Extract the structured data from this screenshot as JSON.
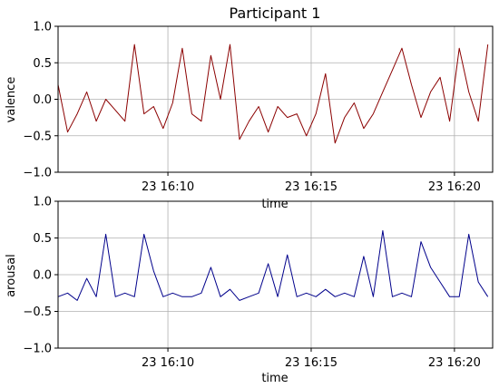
{
  "chart_data": [
    {
      "type": "line",
      "title": "Participant 1",
      "xlabel": "time",
      "ylabel": "valence",
      "ylim": [
        -1.0,
        1.0
      ],
      "xlim": [
        "23 16:06:10",
        "23 16:21:20"
      ],
      "grid": true,
      "y_ticks": [
        "−1.0",
        "−0.5",
        "0.0",
        "0.5",
        "1.0"
      ],
      "x_ticks": [
        "23 16:10",
        "23 16:15",
        "23 16:20"
      ],
      "colors": {
        "series": "#8b0000"
      },
      "series": [
        {
          "x": [
            "23 16:06:10",
            "23 16:06:30",
            "23 16:06:50",
            "23 16:07:10",
            "23 16:07:30",
            "23 16:07:50",
            "23 16:08:10",
            "23 16:08:30",
            "23 16:08:50",
            "23 16:09:10",
            "23 16:09:30",
            "23 16:09:50",
            "23 16:10:10",
            "23 16:10:30",
            "23 16:10:50",
            "23 16:11:10",
            "23 16:11:30",
            "23 16:11:50",
            "23 16:12:10",
            "23 16:12:30",
            "23 16:12:50",
            "23 16:13:10",
            "23 16:13:30",
            "23 16:13:50",
            "23 16:14:10",
            "23 16:14:30",
            "23 16:14:50",
            "23 16:15:10",
            "23 16:15:30",
            "23 16:15:50",
            "23 16:16:10",
            "23 16:16:30",
            "23 16:16:50",
            "23 16:17:10",
            "23 16:17:30",
            "23 16:17:50",
            "23 16:18:10",
            "23 16:18:30",
            "23 16:18:50",
            "23 16:19:10",
            "23 16:19:30",
            "23 16:19:50",
            "23 16:20:10",
            "23 16:20:30",
            "23 16:20:50",
            "23 16:21:10"
          ],
          "values": [
            0.2,
            -0.45,
            -0.2,
            0.1,
            -0.3,
            0.0,
            -0.15,
            -0.3,
            0.75,
            -0.2,
            -0.1,
            -0.4,
            -0.05,
            0.7,
            -0.2,
            -0.3,
            0.6,
            0.0,
            0.75,
            -0.55,
            -0.3,
            -0.1,
            -0.45,
            -0.1,
            -0.25,
            -0.2,
            -0.5,
            -0.2,
            0.35,
            -0.6,
            -0.25,
            -0.05,
            -0.4,
            -0.2,
            0.1,
            0.4,
            0.7,
            0.2,
            -0.25,
            0.1,
            0.3,
            -0.3,
            0.7,
            0.1,
            -0.3,
            0.75
          ]
        }
      ]
    },
    {
      "type": "line",
      "title": "",
      "xlabel": "time",
      "ylabel": "arousal",
      "ylim": [
        -1.0,
        1.0
      ],
      "xlim": [
        "23 16:06:10",
        "23 16:21:20"
      ],
      "grid": true,
      "y_ticks": [
        "−1.0",
        "−0.5",
        "0.0",
        "0.5",
        "1.0"
      ],
      "x_ticks": [
        "23 16:10",
        "23 16:15",
        "23 16:20"
      ],
      "colors": {
        "series": "#00008b"
      },
      "series": [
        {
          "x": [
            "23 16:06:10",
            "23 16:06:30",
            "23 16:06:50",
            "23 16:07:10",
            "23 16:07:30",
            "23 16:07:50",
            "23 16:08:10",
            "23 16:08:30",
            "23 16:08:50",
            "23 16:09:10",
            "23 16:09:30",
            "23 16:09:50",
            "23 16:10:10",
            "23 16:10:30",
            "23 16:10:50",
            "23 16:11:10",
            "23 16:11:30",
            "23 16:11:50",
            "23 16:12:10",
            "23 16:12:30",
            "23 16:12:50",
            "23 16:13:10",
            "23 16:13:30",
            "23 16:13:50",
            "23 16:14:10",
            "23 16:14:30",
            "23 16:14:50",
            "23 16:15:10",
            "23 16:15:30",
            "23 16:15:50",
            "23 16:16:10",
            "23 16:16:30",
            "23 16:16:50",
            "23 16:17:10",
            "23 16:17:30",
            "23 16:17:50",
            "23 16:18:10",
            "23 16:18:30",
            "23 16:18:50",
            "23 16:19:10",
            "23 16:19:30",
            "23 16:19:50",
            "23 16:20:10",
            "23 16:20:30",
            "23 16:20:50",
            "23 16:21:10"
          ],
          "values": [
            -0.3,
            -0.25,
            -0.35,
            -0.05,
            -0.3,
            0.55,
            -0.3,
            -0.25,
            -0.3,
            0.55,
            0.05,
            -0.3,
            -0.25,
            -0.3,
            -0.3,
            -0.25,
            0.1,
            -0.3,
            -0.2,
            -0.35,
            -0.3,
            -0.25,
            0.15,
            -0.3,
            0.27,
            -0.3,
            -0.25,
            -0.3,
            -0.2,
            -0.3,
            -0.25,
            -0.3,
            0.25,
            -0.3,
            0.6,
            -0.3,
            -0.25,
            -0.3,
            0.45,
            0.1,
            -0.1,
            -0.3,
            -0.3,
            0.55,
            -0.1,
            -0.3
          ]
        }
      ]
    }
  ]
}
